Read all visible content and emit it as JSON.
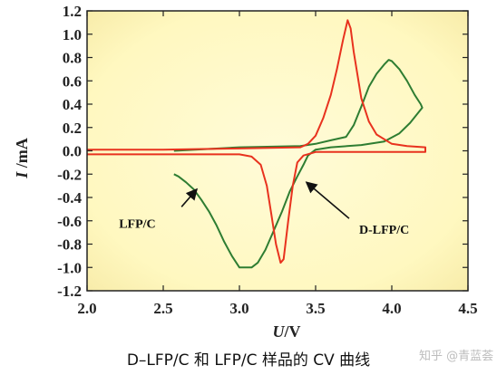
{
  "caption": "D–LFP/C 和 LFP/C 样品的 CV 曲线",
  "watermark": "知乎 @青蓝荟",
  "chart_data": {
    "type": "line",
    "xlabel_italic": "U",
    "xlabel_unit": "/V",
    "ylabel_italic": "I",
    "ylabel_unit": " /mA",
    "xlim": [
      2.0,
      4.5
    ],
    "ylim": [
      -1.2,
      1.2
    ],
    "xticks": [
      "2.0",
      "2.5",
      "3.0",
      "3.5",
      "4.0",
      "4.5"
    ],
    "yticks": [
      "1.2",
      "1.0",
      "0.8",
      "0.6",
      "0.4",
      "0.2",
      "0.0",
      "-0.2",
      "-0.4",
      "-0.6",
      "-0.8",
      "-1.0",
      "-1.2"
    ],
    "grid": false,
    "background": "#fff8c0",
    "series": [
      {
        "name": "LFP/C",
        "color": "#2e7d32",
        "points": [
          [
            2.57,
            0.0
          ],
          [
            3.0,
            0.03
          ],
          [
            3.4,
            0.04
          ],
          [
            3.5,
            0.06
          ],
          [
            3.6,
            0.09
          ],
          [
            3.7,
            0.12
          ],
          [
            3.75,
            0.22
          ],
          [
            3.8,
            0.38
          ],
          [
            3.85,
            0.55
          ],
          [
            3.9,
            0.66
          ],
          [
            3.95,
            0.74
          ],
          [
            3.98,
            0.78
          ],
          [
            4.0,
            0.77
          ],
          [
            4.05,
            0.7
          ],
          [
            4.1,
            0.6
          ],
          [
            4.15,
            0.48
          ],
          [
            4.19,
            0.4
          ],
          [
            4.2,
            0.37
          ],
          [
            4.12,
            0.24
          ],
          [
            4.05,
            0.15
          ],
          [
            3.95,
            0.08
          ],
          [
            3.8,
            0.05
          ],
          [
            3.6,
            0.03
          ],
          [
            3.5,
            0.01
          ],
          [
            3.45,
            -0.04
          ],
          [
            3.42,
            -0.12
          ],
          [
            3.38,
            -0.22
          ],
          [
            3.33,
            -0.35
          ],
          [
            3.28,
            -0.52
          ],
          [
            3.22,
            -0.7
          ],
          [
            3.17,
            -0.85
          ],
          [
            3.12,
            -0.96
          ],
          [
            3.08,
            -1.0
          ],
          [
            3.0,
            -1.0
          ],
          [
            2.95,
            -0.9
          ],
          [
            2.9,
            -0.78
          ],
          [
            2.85,
            -0.64
          ],
          [
            2.8,
            -0.52
          ],
          [
            2.75,
            -0.42
          ],
          [
            2.7,
            -0.33
          ],
          [
            2.65,
            -0.27
          ],
          [
            2.6,
            -0.22
          ],
          [
            2.57,
            -0.2
          ]
        ]
      },
      {
        "name": "D-LFP/C",
        "color": "#e8321e",
        "points": [
          [
            2.0,
            0.01
          ],
          [
            2.5,
            0.01
          ],
          [
            3.0,
            0.02
          ],
          [
            3.4,
            0.03
          ],
          [
            3.45,
            0.06
          ],
          [
            3.5,
            0.13
          ],
          [
            3.55,
            0.28
          ],
          [
            3.6,
            0.48
          ],
          [
            3.64,
            0.7
          ],
          [
            3.68,
            0.95
          ],
          [
            3.71,
            1.12
          ],
          [
            3.73,
            1.05
          ],
          [
            3.75,
            0.85
          ],
          [
            3.8,
            0.45
          ],
          [
            3.85,
            0.25
          ],
          [
            3.9,
            0.14
          ],
          [
            4.0,
            0.06
          ],
          [
            4.1,
            0.04
          ],
          [
            4.22,
            0.03
          ],
          [
            4.22,
            -0.01
          ],
          [
            4.0,
            -0.01
          ],
          [
            3.7,
            -0.01
          ],
          [
            3.5,
            -0.01
          ],
          [
            3.42,
            -0.04
          ],
          [
            3.38,
            -0.1
          ],
          [
            3.35,
            -0.3
          ],
          [
            3.32,
            -0.6
          ],
          [
            3.29,
            -0.93
          ],
          [
            3.27,
            -0.96
          ],
          [
            3.24,
            -0.8
          ],
          [
            3.21,
            -0.55
          ],
          [
            3.18,
            -0.3
          ],
          [
            3.14,
            -0.12
          ],
          [
            3.08,
            -0.05
          ],
          [
            3.0,
            -0.03
          ],
          [
            2.5,
            -0.03
          ],
          [
            2.0,
            -0.03
          ]
        ]
      }
    ],
    "annotations": [
      {
        "text": "LFP/C",
        "arrow_from": [
          2.62,
          -0.48
        ],
        "arrow_to": [
          2.72,
          -0.33
        ]
      },
      {
        "text": "D-LFP/C",
        "arrow_from": [
          3.72,
          -0.58
        ],
        "arrow_to": [
          3.44,
          -0.27
        ]
      }
    ]
  }
}
